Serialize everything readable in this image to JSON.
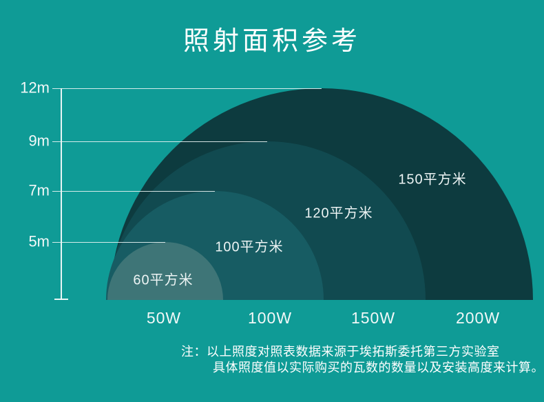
{
  "page": {
    "title": "照射面积参考"
  },
  "chart_data": {
    "type": "area",
    "variant": "nested-semicircles",
    "title": "照射面积参考",
    "x_axis": {
      "label": "",
      "tick_labels": [
        "50W",
        "100W",
        "150W",
        "200W"
      ]
    },
    "y_axis": {
      "label": "",
      "tick_labels": [
        "12m",
        "9m",
        "7m",
        "5m"
      ]
    },
    "series": [
      {
        "wattage": "50W",
        "watts": 50,
        "area_label": "60平方米",
        "area_sqm": 60,
        "height_label": "5m",
        "height_m": 5,
        "color": "#3E7577"
      },
      {
        "wattage": "100W",
        "watts": 100,
        "area_label": "100平方米",
        "area_sqm": 100,
        "height_label": "7m",
        "height_m": 7,
        "color": "#175C63"
      },
      {
        "wattage": "150W",
        "watts": 150,
        "area_label": "120平方米",
        "area_sqm": 120,
        "height_label": "9m",
        "height_m": 9,
        "color": "#114A50"
      },
      {
        "wattage": "200W",
        "watts": 200,
        "area_label": "150平方米",
        "area_sqm": 150,
        "height_label": "12m",
        "height_m": 12,
        "color": "#0D3B3F"
      }
    ],
    "legend": "none",
    "grid": "horizontal guide lines from y-axis to each semicircle apex"
  },
  "footnote": {
    "line1": "注：以上照度对照表数据来源于埃拓斯委托第三方实验室",
    "line2": "具体照度值以实际购买的瓦数的数量以及安装高度来计算。"
  },
  "colors": {
    "background": "#0F9B96",
    "text": "#FFFFFF",
    "axis_line": "#EBF5F4"
  }
}
